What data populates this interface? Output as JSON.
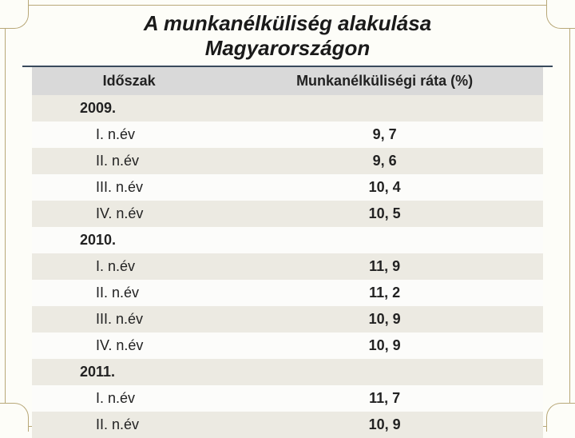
{
  "title_line1": "A munkanélküliség alakulása",
  "title_line2": "Magyarországon",
  "table": {
    "type": "table",
    "columns": [
      "Időszak",
      "Munkanélküliségi ráta (%)"
    ],
    "column_widths": [
      "38%",
      "62%"
    ],
    "header_bg": "#d9d9d9",
    "row_odd_bg": "#eceae2",
    "row_even_bg": "#fcfcfa",
    "text_color": "#222222",
    "font_size": 18,
    "rows": [
      {
        "period": "2009.",
        "rate": "",
        "year": true
      },
      {
        "period": "I. n.év",
        "rate": "9, 7"
      },
      {
        "period": "II. n.év",
        "rate": "9, 6"
      },
      {
        "period": "III. n.év",
        "rate": "10, 4"
      },
      {
        "period": "IV. n.év",
        "rate": "10, 5"
      },
      {
        "period": "2010.",
        "rate": "",
        "year": true
      },
      {
        "period": "I. n.év",
        "rate": "11, 9"
      },
      {
        "period": "II. n.év",
        "rate": "11, 2"
      },
      {
        "period": "III. n.év",
        "rate": "10, 9"
      },
      {
        "period": "IV. n.év",
        "rate": "10, 9"
      },
      {
        "period": "2011.",
        "rate": "",
        "year": true
      },
      {
        "period": "I. n.év",
        "rate": "11, 7"
      },
      {
        "period": "II. n.év",
        "rate": "10, 9"
      }
    ]
  },
  "frame": {
    "border_color": "#b8a878",
    "background_color": "#fdfdf8"
  },
  "title_style": {
    "font_size": 26,
    "font_weight": "bold",
    "font_style": "italic",
    "underline_color": "#394a5c"
  }
}
